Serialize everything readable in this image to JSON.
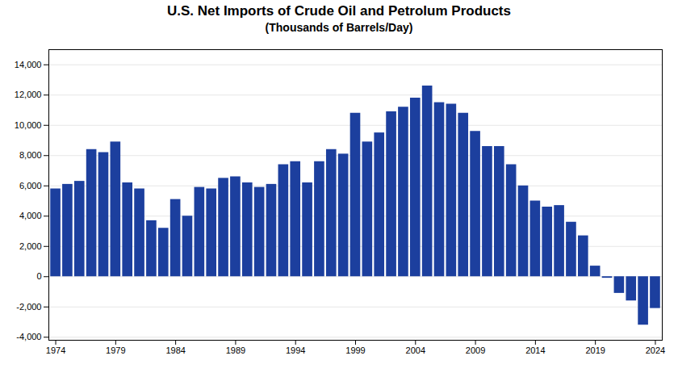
{
  "chart_data": {
    "type": "bar",
    "title": "U.S. Net Imports of Crude Oil and Petrolum Products",
    "subtitle": "(Thousands of Barrels/Day)",
    "x": [
      1974,
      1975,
      1976,
      1977,
      1978,
      1979,
      1980,
      1981,
      1982,
      1983,
      1984,
      1985,
      1986,
      1987,
      1988,
      1989,
      1990,
      1991,
      1992,
      1993,
      1994,
      1995,
      1996,
      1997,
      1998,
      1999,
      2000,
      2001,
      2002,
      2003,
      2004,
      2005,
      2006,
      2007,
      2008,
      2009,
      2010,
      2011,
      2012,
      2013,
      2014,
      2015,
      2016,
      2017,
      2018,
      2019,
      2020,
      2021,
      2022,
      2023,
      2024
    ],
    "values": [
      5800,
      6100,
      6300,
      8400,
      8200,
      8900,
      6200,
      5800,
      3700,
      3200,
      5100,
      4000,
      5900,
      5800,
      6500,
      6600,
      6200,
      5900,
      6100,
      7400,
      7600,
      6200,
      7600,
      8400,
      8100,
      10800,
      8900,
      9500,
      10900,
      11200,
      11800,
      12600,
      11500,
      11400,
      10800,
      9600,
      8600,
      8600,
      7400,
      6000,
      5000,
      4600,
      4700,
      3600,
      2700,
      700,
      -100,
      -1100,
      -1600,
      -3200,
      -2100
    ],
    "color": "#1c3f9e",
    "xticks": [
      1974,
      1979,
      1984,
      1989,
      1994,
      1999,
      2004,
      2009,
      2014,
      2019,
      2024
    ],
    "ylim": [
      -4200,
      15000
    ],
    "yticks": [
      {
        "value": -4000,
        "label": "-4,000"
      },
      {
        "value": -2000,
        "label": "-2,000"
      },
      0,
      {
        "value": 2000,
        "label": "2,000"
      },
      {
        "value": 4000,
        "label": "4,000"
      },
      {
        "value": 6000,
        "label": "6,000"
      },
      {
        "value": 8000,
        "label": "8,000"
      },
      {
        "value": 10000,
        "label": "10,000"
      },
      {
        "value": 12000,
        "label": "12,000"
      },
      {
        "value": 14000,
        "label": "14,000"
      }
    ],
    "grid": true
  }
}
